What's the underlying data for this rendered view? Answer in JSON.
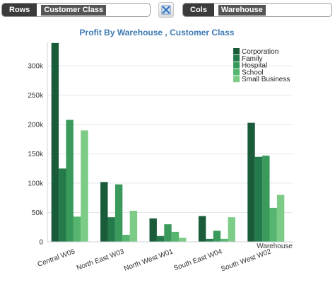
{
  "toolbar": {
    "rows_label": "Rows",
    "rows_value": "Customer Class",
    "cols_label": "Cols",
    "cols_value": "Warehouse",
    "swap_icon": "swap-axes-icon"
  },
  "chart_data": {
    "type": "bar",
    "title": "Profit By Warehouse , Customer Class",
    "xlabel": "Warehouse",
    "ylabel": "",
    "ylim": [
      0,
      340000
    ],
    "yticks": [
      0,
      50000,
      100000,
      150000,
      200000,
      250000,
      300000
    ],
    "ytick_labels": [
      "0",
      "50k",
      "100k",
      "150k",
      "200k",
      "250k",
      "300k"
    ],
    "grid": true,
    "legend_position": "top-right",
    "categories": [
      "Central W05",
      "North East W03",
      "North West W01",
      "South East W04",
      "South West W02"
    ],
    "series": [
      {
        "name": "Corporation",
        "color": "#1a5c3a",
        "values": [
          339000,
          102000,
          40000,
          44000,
          203000
        ]
      },
      {
        "name": "Family",
        "color": "#247a4a",
        "values": [
          125000,
          42000,
          10000,
          5000,
          145000
        ]
      },
      {
        "name": "Hospital",
        "color": "#3a9a5c",
        "values": [
          208000,
          98000,
          30000,
          19000,
          147000
        ]
      },
      {
        "name": "School",
        "color": "#56b56e",
        "values": [
          43000,
          12000,
          17000,
          5000,
          58000
        ]
      },
      {
        "name": "Small Business",
        "color": "#7ccb86",
        "values": [
          190000,
          53000,
          7000,
          42000,
          80000
        ]
      }
    ]
  }
}
